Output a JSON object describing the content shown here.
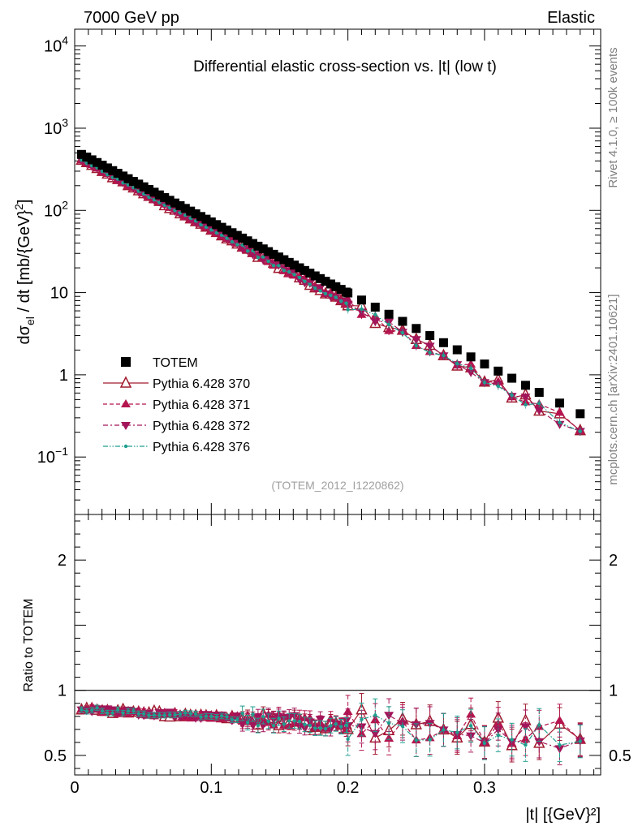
{
  "header": {
    "left": "7000 GeV pp",
    "right": "Elastic"
  },
  "side_text": {
    "rivet": "Rivet 4.1.0, ≥ 100k events",
    "mcplots": "mcplots.cern.ch [arXiv:2401.10621]"
  },
  "chart_data": [
    {
      "type": "scatter",
      "title": "Differential elastic cross-section vs. |t| (low t)",
      "ylabel": "dσel / dt [mb/{GeV}²]",
      "yscale": "log",
      "ylim": [
        0.02,
        16000
      ],
      "xlim": [
        0,
        0.385
      ],
      "watermark": "(TOTEM_2012_I1220862)",
      "yticks": [
        {
          "value": 10000,
          "base": "10",
          "exp": "4"
        },
        {
          "value": 1000,
          "base": "10",
          "exp": "3"
        },
        {
          "value": 100,
          "base": "10",
          "exp": "2"
        },
        {
          "value": 10,
          "base": "10",
          "exp": ""
        },
        {
          "value": 1,
          "base": "1",
          "exp": ""
        },
        {
          "value": 0.1,
          "base": "10",
          "exp": "−1"
        }
      ],
      "legend": [
        {
          "name": "TOTEM",
          "color": "#000000",
          "marker": "square",
          "line": "none"
        },
        {
          "name": "Pythia 6.428 370",
          "color": "#a01a2e",
          "marker": "triangle-open",
          "line": "solid"
        },
        {
          "name": "Pythia 6.428 371",
          "color": "#b5154e",
          "marker": "triangle-up",
          "line": "dashed"
        },
        {
          "name": "Pythia 6.428 372",
          "color": "#a3155a",
          "marker": "triangle-down",
          "line": "dashdot"
        },
        {
          "name": "Pythia 6.428 376",
          "color": "#1f9e8e",
          "marker": "dot",
          "line": "dashdotdot"
        }
      ],
      "data_model": {
        "totem_t_range": [
          0.005,
          0.37
        ],
        "totem_t_range_note": "TOTEM is a near-exponential falloff in |t|, sampled densely below |t|=0.2 and sparser above",
        "totem_dsigma_at_t0": 530,
        "slope_b_per_gev2": 19.9,
        "sparse_t_points": [
          0.2,
          0.21,
          0.22,
          0.23,
          0.24,
          0.25,
          0.26,
          0.27,
          0.28,
          0.29,
          0.3,
          0.31,
          0.32,
          0.33,
          0.34,
          0.355,
          0.37
        ],
        "mc_ratio_start": 0.86,
        "mc_ratio_end": 0.66
      }
    },
    {
      "type": "scatter",
      "ylabel": "Ratio to TOTEM",
      "xlabel": "|t| [{GeV}²]",
      "ylim": [
        0.35,
        2.35
      ],
      "xlim": [
        0,
        0.385
      ],
      "yticks": [
        "0.5",
        "1",
        "2"
      ],
      "xticks": [
        "0",
        "0.1",
        "0.2",
        "0.3"
      ],
      "reference_line": 1
    }
  ]
}
